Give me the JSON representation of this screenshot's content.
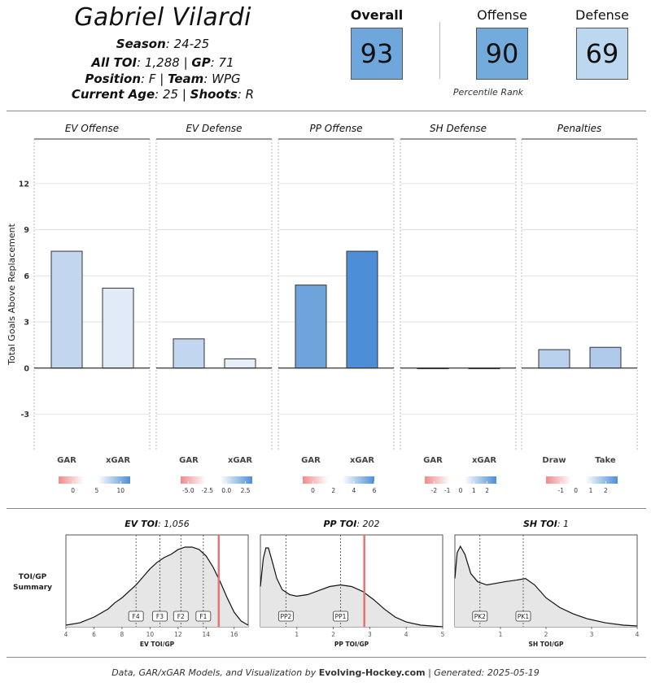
{
  "player": {
    "name": "Gabriel Vilardi",
    "season_label": "Season",
    "season": "24-25",
    "toi_label": "All TOI",
    "toi": "1,288",
    "gp_label": "GP",
    "gp": "71",
    "position_label": "Position",
    "position": "F",
    "team_label": "Team",
    "team": "WPG",
    "age_label": "Current Age",
    "age": "25",
    "shoots_label": "Shoots",
    "shoots": "R"
  },
  "percentiles": {
    "overall_label": "Overall",
    "overall": "93",
    "offense_label": "Offense",
    "offense": "90",
    "defense_label": "Defense",
    "defense": "69",
    "note": "Percentile Rank"
  },
  "chart_data": [
    {
      "type": "bar",
      "ylabel": "Total Goals Above Replacement",
      "ylim": [
        -5.3,
        14.9
      ],
      "yticks": [
        -3,
        0,
        3,
        6,
        9,
        12
      ],
      "panels": [
        {
          "title": "EV Offense",
          "categories": [
            "GAR",
            "xGAR"
          ],
          "values": [
            7.6,
            5.2
          ],
          "colors": [
            "#c2d6ef",
            "#e1eaf7"
          ],
          "scale": {
            "ticks": [
              "0",
              "5",
              "10"
            ],
            "range": [
              -3,
              12
            ]
          }
        },
        {
          "title": "EV Defense",
          "categories": [
            "GAR",
            "xGAR"
          ],
          "values": [
            1.9,
            0.6
          ],
          "colors": [
            "#c2d6ef",
            "#e6eef8"
          ],
          "scale": {
            "ticks": [
              "-5.0",
              "-2.5",
              "0.0",
              "2.5"
            ],
            "range": [
              -6,
              3.4
            ]
          }
        },
        {
          "title": "PP Offense",
          "categories": [
            "GAR",
            "xGAR"
          ],
          "values": [
            5.4,
            7.6
          ],
          "colors": [
            "#6ea4db",
            "#4d8fd6"
          ],
          "scale": {
            "ticks": [
              "0",
              "2",
              "4",
              "6"
            ],
            "range": [
              -1,
              6
            ]
          }
        },
        {
          "title": "SH Defense",
          "categories": [
            "GAR",
            "xGAR"
          ],
          "values": [
            0.0,
            0.0
          ],
          "colors": [
            "#ffffff",
            "#ffffff"
          ],
          "scale": {
            "ticks": [
              "-2",
              "-1",
              "0",
              "1",
              "2"
            ],
            "range": [
              -2.7,
              2.7
            ]
          }
        },
        {
          "title": "Penalties",
          "categories": [
            "Draw",
            "Take"
          ],
          "values": [
            1.2,
            1.35
          ],
          "colors": [
            "#b8d0ee",
            "#b0caec"
          ],
          "scale": {
            "ticks": [
              "-1",
              "0",
              "1",
              "2"
            ],
            "range": [
              -2,
              2.8
            ]
          }
        }
      ]
    },
    {
      "type": "area",
      "title_label": "EV TOI",
      "title_value": "1,056",
      "xlabel": "EV TOI/GP",
      "xlim": [
        4,
        17
      ],
      "xticks": [
        4,
        6,
        8,
        10,
        12,
        14,
        16
      ],
      "curve": [
        [
          4,
          0.02
        ],
        [
          5,
          0.05
        ],
        [
          6,
          0.12
        ],
        [
          7,
          0.22
        ],
        [
          7.5,
          0.3
        ],
        [
          8,
          0.36
        ],
        [
          8.5,
          0.44
        ],
        [
          9,
          0.52
        ],
        [
          9.5,
          0.62
        ],
        [
          10,
          0.72
        ],
        [
          10.5,
          0.8
        ],
        [
          11,
          0.86
        ],
        [
          11.5,
          0.9
        ],
        [
          12,
          0.96
        ],
        [
          12.5,
          0.99
        ],
        [
          13,
          0.99
        ],
        [
          13.5,
          0.96
        ],
        [
          14,
          0.88
        ],
        [
          14.5,
          0.74
        ],
        [
          15,
          0.56
        ],
        [
          15.5,
          0.36
        ],
        [
          16,
          0.18
        ],
        [
          16.5,
          0.07
        ],
        [
          17,
          0.02
        ]
      ],
      "markers": [
        {
          "label": "F4",
          "x": 9.0
        },
        {
          "label": "F3",
          "x": 10.7
        },
        {
          "label": "F2",
          "x": 12.2
        },
        {
          "label": "F1",
          "x": 13.8
        }
      ],
      "player_value": 14.9
    },
    {
      "type": "area",
      "title_label": "PP TOI",
      "title_value": "202",
      "xlabel": "PP TOI/GP",
      "xlim": [
        0,
        5
      ],
      "xticks": [
        1,
        2,
        3,
        4,
        5
      ],
      "curve": [
        [
          0,
          0.5
        ],
        [
          0.08,
          0.85
        ],
        [
          0.15,
          0.98
        ],
        [
          0.22,
          0.98
        ],
        [
          0.32,
          0.82
        ],
        [
          0.45,
          0.6
        ],
        [
          0.6,
          0.46
        ],
        [
          0.8,
          0.4
        ],
        [
          1.0,
          0.38
        ],
        [
          1.3,
          0.4
        ],
        [
          1.6,
          0.45
        ],
        [
          1.9,
          0.5
        ],
        [
          2.2,
          0.52
        ],
        [
          2.5,
          0.5
        ],
        [
          2.8,
          0.44
        ],
        [
          3.1,
          0.34
        ],
        [
          3.4,
          0.22
        ],
        [
          3.7,
          0.12
        ],
        [
          4.0,
          0.06
        ],
        [
          4.4,
          0.02
        ],
        [
          5,
          0.0
        ]
      ],
      "markers": [
        {
          "label": "PP2",
          "x": 0.7
        },
        {
          "label": "PP1",
          "x": 2.2
        }
      ],
      "player_value": 2.85
    },
    {
      "type": "area",
      "title_label": "SH TOI",
      "title_value": "1",
      "xlabel": "SH TOI/GP",
      "xlim": [
        0,
        4
      ],
      "xticks": [
        1,
        2,
        3,
        4
      ],
      "curve": [
        [
          0,
          0.6
        ],
        [
          0.05,
          0.92
        ],
        [
          0.12,
          1.0
        ],
        [
          0.22,
          0.9
        ],
        [
          0.35,
          0.66
        ],
        [
          0.5,
          0.56
        ],
        [
          0.7,
          0.52
        ],
        [
          0.9,
          0.54
        ],
        [
          1.1,
          0.56
        ],
        [
          1.35,
          0.58
        ],
        [
          1.55,
          0.6
        ],
        [
          1.75,
          0.52
        ],
        [
          2.0,
          0.36
        ],
        [
          2.3,
          0.24
        ],
        [
          2.6,
          0.16
        ],
        [
          2.9,
          0.1
        ],
        [
          3.3,
          0.05
        ],
        [
          3.7,
          0.02
        ],
        [
          4,
          0.01
        ]
      ],
      "markers": [
        {
          "label": "PK2",
          "x": 0.55
        },
        {
          "label": "PK1",
          "x": 1.5
        }
      ],
      "player_value": null
    }
  ],
  "toi_summary_label_1": "TOI/GP",
  "toi_summary_label_2": "Summary",
  "footer": {
    "prefix": "Data, GAR/xGAR Models, and Visualization by ",
    "brand": "Evolving-Hockey.com",
    "suffix": " | Generated: 2025-05-19"
  }
}
